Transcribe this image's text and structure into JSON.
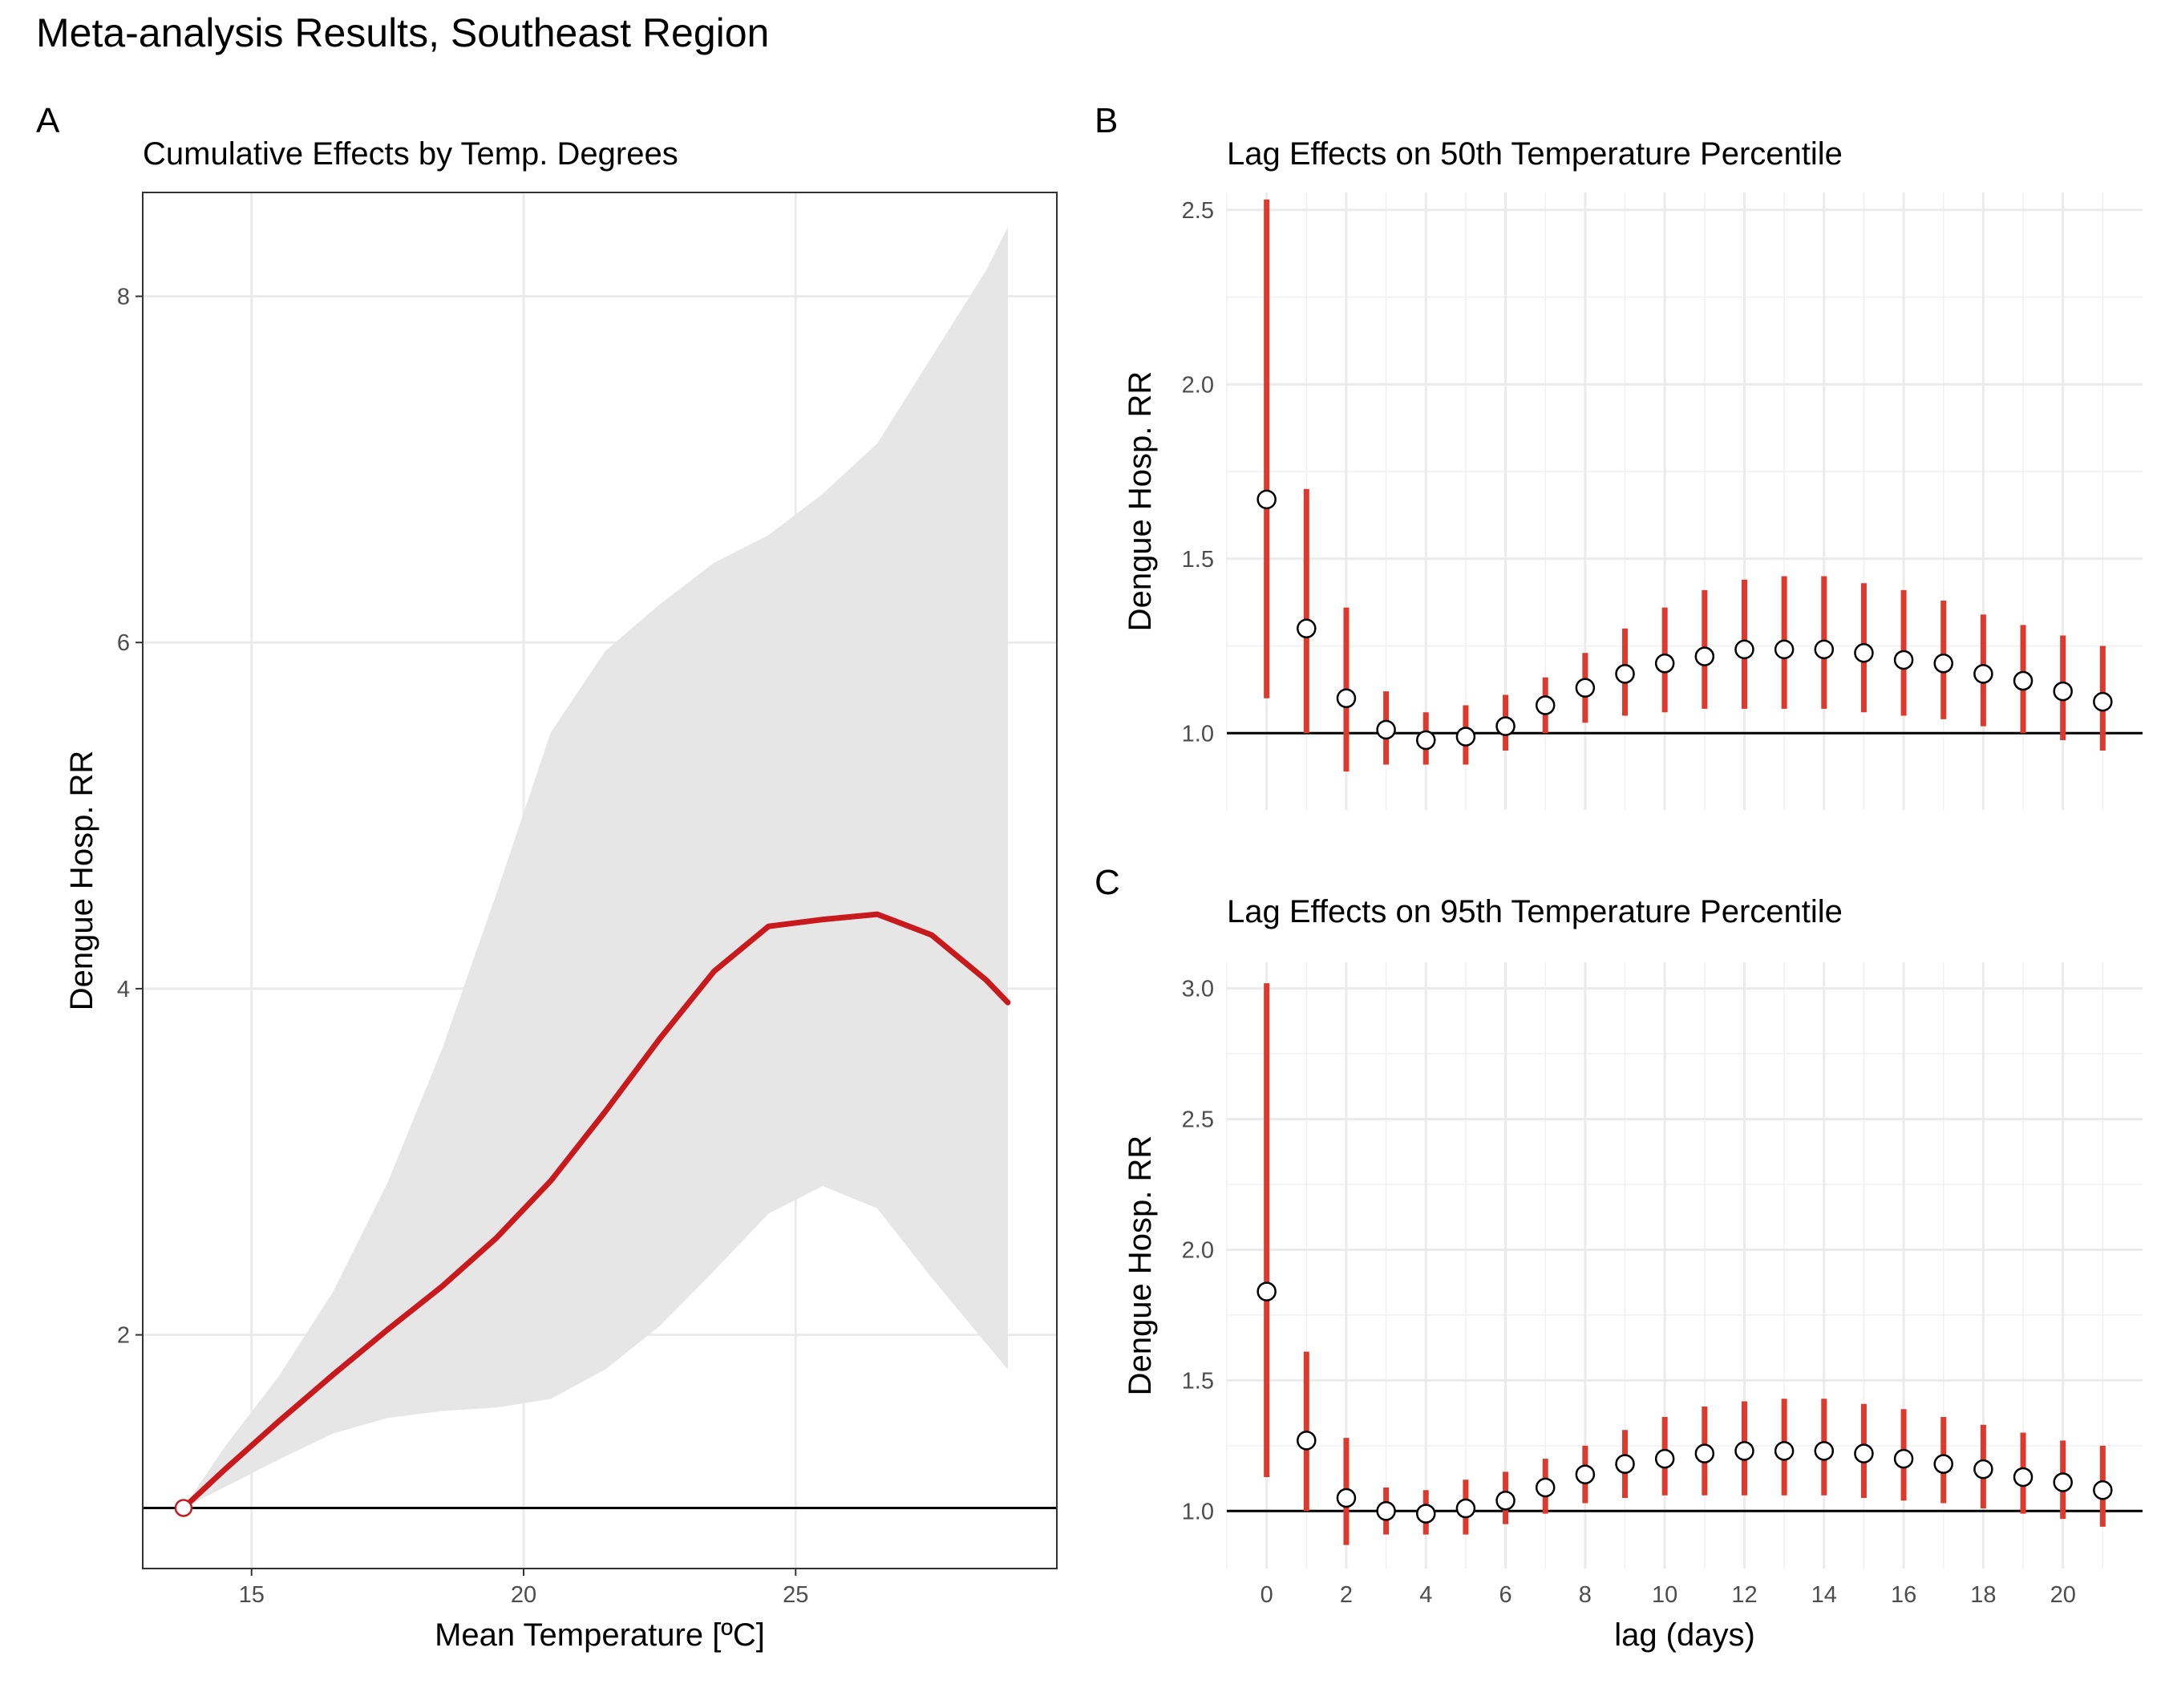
{
  "figure": {
    "title": "Meta-analysis Results, Southeast Region"
  },
  "chart_data": [
    {
      "panel_tag": "A",
      "type": "line",
      "title": "Cumulative Effects by Temp. Degrees",
      "xlabel": "Mean Temperature [ºC]",
      "ylabel": "Dengue Hosp. RR",
      "xlim": [
        13,
        29.8
      ],
      "ylim": [
        0.65,
        8.6
      ],
      "xticks": [
        15,
        20,
        25
      ],
      "yticks": [
        2,
        4,
        6,
        8
      ],
      "xtick_labels": [
        "15",
        "20",
        "25"
      ],
      "ytick_labels": [
        "2",
        "4",
        "6",
        "8"
      ],
      "reference_line": 1,
      "grid": true,
      "series": [
        {
          "x": [
            13.75,
            14.5,
            15.5,
            16.5,
            17.5,
            18.5,
            19.5,
            20.5,
            21.5,
            22.5,
            23.5,
            24.5,
            25.5,
            26.5,
            27.5,
            28.5,
            28.9
          ],
          "y": [
            1.0,
            1.22,
            1.5,
            1.77,
            2.03,
            2.28,
            2.56,
            2.89,
            3.29,
            3.71,
            4.1,
            4.36,
            4.4,
            4.43,
            4.31,
            4.05,
            3.92
          ],
          "lower": [
            1.0,
            1.12,
            1.28,
            1.43,
            1.52,
            1.56,
            1.58,
            1.63,
            1.8,
            2.05,
            2.37,
            2.7,
            2.86,
            2.73,
            2.33,
            1.95,
            1.8
          ],
          "upper": [
            1.0,
            1.35,
            1.76,
            2.25,
            2.88,
            3.65,
            4.55,
            5.48,
            5.95,
            6.22,
            6.46,
            6.62,
            6.86,
            7.15,
            7.65,
            8.15,
            8.4
          ],
          "color": "#c8191d",
          "band_color": "#e6e6e6"
        }
      ]
    },
    {
      "panel_tag": "B",
      "type": "scatter",
      "title": "Lag Effects on 50th Temperature Percentile",
      "xlabel": "",
      "ylabel": "Dengue Hosp. RR",
      "xlim": [
        -1,
        22
      ],
      "ylim": [
        0.78,
        2.55
      ],
      "xticks": [],
      "yticks": [
        1.0,
        1.5,
        2.0,
        2.5
      ],
      "ytick_labels": [
        "1.0",
        "1.5",
        "2.0",
        "2.5"
      ],
      "reference_line": 1,
      "grid": true,
      "series": [
        {
          "x": [
            0,
            1,
            2,
            3,
            4,
            5,
            6,
            7,
            8,
            9,
            10,
            11,
            12,
            13,
            14,
            15,
            16,
            17,
            18,
            19,
            20,
            21
          ],
          "y": [
            1.67,
            1.3,
            1.1,
            1.01,
            0.98,
            0.99,
            1.02,
            1.08,
            1.13,
            1.17,
            1.2,
            1.22,
            1.24,
            1.24,
            1.24,
            1.23,
            1.21,
            1.2,
            1.17,
            1.15,
            1.12,
            1.09
          ],
          "lower": [
            1.1,
            1.0,
            0.89,
            0.91,
            0.91,
            0.91,
            0.95,
            1.0,
            1.03,
            1.05,
            1.06,
            1.07,
            1.07,
            1.07,
            1.07,
            1.06,
            1.05,
            1.04,
            1.02,
            1.0,
            0.98,
            0.95
          ],
          "upper": [
            2.53,
            1.7,
            1.36,
            1.12,
            1.06,
            1.08,
            1.11,
            1.16,
            1.23,
            1.3,
            1.36,
            1.41,
            1.44,
            1.45,
            1.45,
            1.43,
            1.41,
            1.38,
            1.34,
            1.31,
            1.28,
            1.25
          ],
          "point_color": "#ffffff",
          "ci_color": "#dd3a2d"
        }
      ]
    },
    {
      "panel_tag": "C",
      "type": "scatter",
      "title": "Lag Effects on 95th Temperature Percentile",
      "xlabel": "lag (days)",
      "ylabel": "Dengue Hosp. RR",
      "xlim": [
        -1,
        22
      ],
      "ylim": [
        0.78,
        3.1
      ],
      "xticks": [
        0,
        2,
        4,
        6,
        8,
        10,
        12,
        14,
        16,
        18,
        20
      ],
      "xtick_labels": [
        "0",
        "2",
        "4",
        "6",
        "8",
        "10",
        "12",
        "14",
        "16",
        "18",
        "20"
      ],
      "yticks": [
        1.0,
        1.5,
        2.0,
        2.5,
        3.0
      ],
      "ytick_labels": [
        "1.0",
        "1.5",
        "2.0",
        "2.5",
        "3.0"
      ],
      "reference_line": 1,
      "grid": true,
      "series": [
        {
          "x": [
            0,
            1,
            2,
            3,
            4,
            5,
            6,
            7,
            8,
            9,
            10,
            11,
            12,
            13,
            14,
            15,
            16,
            17,
            18,
            19,
            20,
            21
          ],
          "y": [
            1.84,
            1.27,
            1.05,
            1.0,
            0.99,
            1.01,
            1.04,
            1.09,
            1.14,
            1.18,
            1.2,
            1.22,
            1.23,
            1.23,
            1.23,
            1.22,
            1.2,
            1.18,
            1.16,
            1.13,
            1.11,
            1.08
          ],
          "lower": [
            1.13,
            1.0,
            0.87,
            0.91,
            0.91,
            0.91,
            0.95,
            0.99,
            1.03,
            1.05,
            1.06,
            1.06,
            1.06,
            1.06,
            1.06,
            1.05,
            1.04,
            1.03,
            1.01,
            0.99,
            0.97,
            0.94
          ],
          "upper": [
            3.02,
            1.61,
            1.28,
            1.09,
            1.08,
            1.12,
            1.15,
            1.2,
            1.25,
            1.31,
            1.36,
            1.4,
            1.42,
            1.43,
            1.43,
            1.41,
            1.39,
            1.36,
            1.33,
            1.3,
            1.27,
            1.25
          ],
          "point_color": "#ffffff",
          "ci_color": "#dd3a2d"
        }
      ]
    }
  ]
}
